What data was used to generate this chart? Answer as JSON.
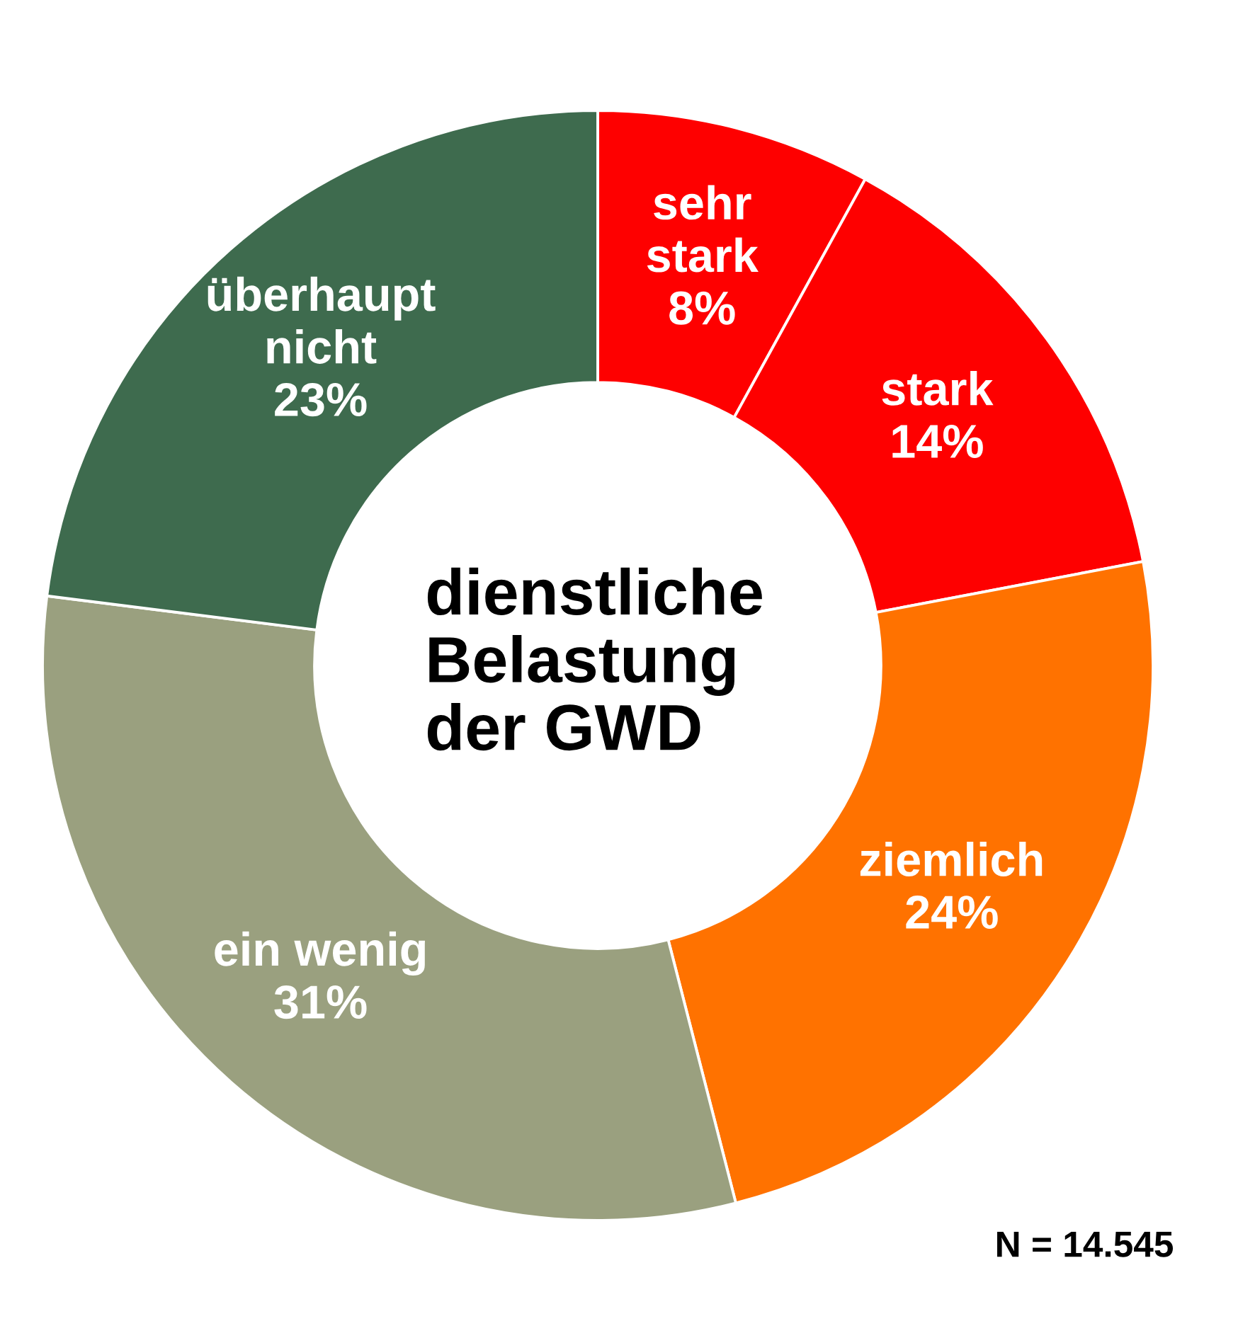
{
  "chart_data": {
    "type": "donut",
    "title": "dienstliche\nBelastung\nder GWD",
    "categories": [
      "sehr stark",
      "stark",
      "ziemlich",
      "ein wenig",
      "überhaupt nicht"
    ],
    "values": [
      8,
      14,
      24,
      31,
      23
    ],
    "colors": [
      "#fe0000",
      "#fe0000",
      "#ff7200",
      "#9aa07f",
      "#3e6b4e"
    ],
    "value_labels": [
      "8%",
      "14%",
      "24%",
      "31%",
      "23%"
    ],
    "annotations": [
      "N = 14.545"
    ]
  }
}
